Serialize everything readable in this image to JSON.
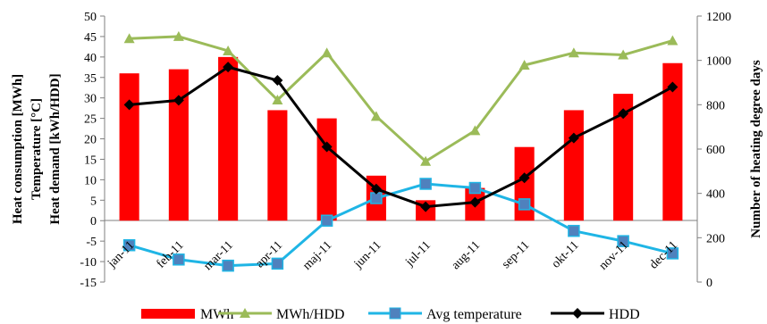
{
  "chart_data": {
    "type": "bar+line",
    "categories": [
      "jan-11",
      "feb-11",
      "mar-11",
      "apr-11",
      "maj-11",
      "jun-11",
      "jul-11",
      "aug-11",
      "sep-11",
      "okt-11",
      "nov-11",
      "dec-11"
    ],
    "bar_series": {
      "name": "MWh",
      "axis": "left",
      "color": "#ff0000",
      "values": [
        36,
        37,
        40,
        27,
        25,
        11,
        5,
        8,
        18,
        27,
        31,
        38.5
      ]
    },
    "line_series": [
      {
        "name": "MWh/HDD",
        "axis": "left",
        "color": "#9bbb59",
        "marker": "triangle",
        "values": [
          44.5,
          45,
          41.5,
          29.5,
          41,
          25.5,
          14.5,
          22,
          38,
          41,
          40.5,
          44
        ]
      },
      {
        "name": "Avg temperature",
        "axis": "left",
        "color": "#1fb5e5",
        "marker": "square",
        "values": [
          -6,
          -9.5,
          -11,
          -10.5,
          0,
          5.5,
          9,
          8,
          4,
          -2.5,
          -5,
          -8
        ]
      },
      {
        "name": "HDD",
        "axis": "right",
        "color": "#000000",
        "marker": "diamond",
        "values": [
          800,
          820,
          970,
          910,
          610,
          420,
          340,
          360,
          470,
          650,
          760,
          880
        ]
      }
    ],
    "y_left": {
      "min": -15,
      "max": 50,
      "step": 5,
      "labels": [
        "Heat consumption [MWh]",
        "Temperature [°C]",
        "Heat demand [kWh/HDD]"
      ]
    },
    "y_right": {
      "min": 0,
      "max": 1200,
      "step": 200,
      "label": "Number of heating degree days"
    },
    "grid": false,
    "legend_position": "bottom"
  }
}
